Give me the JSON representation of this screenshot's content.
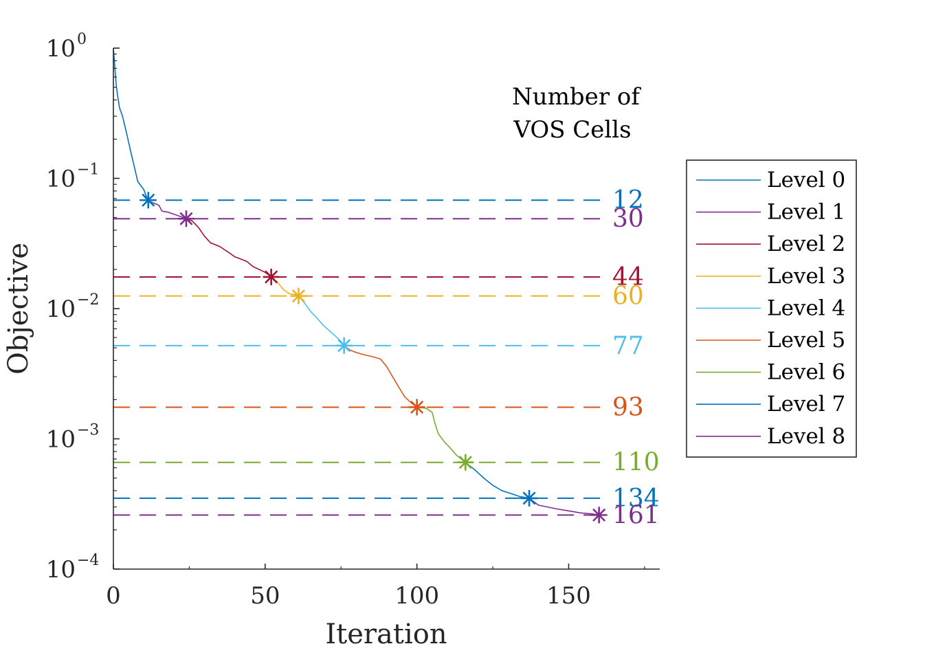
{
  "chart_data": {
    "type": "line",
    "title": "",
    "xlabel": "Iteration",
    "ylabel": "Objective",
    "xlim": [
      0,
      180
    ],
    "ylim": [
      0.0001,
      1
    ],
    "yscale": "log",
    "grid": false,
    "legend_position": "outside-right",
    "x_ticks": [
      0,
      50,
      100,
      150
    ],
    "x_tick_labels": [
      "0",
      "50",
      "100",
      "150"
    ],
    "y_ticks": [
      0.0001,
      0.001,
      0.01,
      0.1,
      1
    ],
    "y_tick_labels": [
      {
        "base": "10",
        "exp": "−4"
      },
      {
        "base": "10",
        "exp": "−3"
      },
      {
        "base": "10",
        "exp": "−2"
      },
      {
        "base": "10",
        "exp": "−1"
      },
      {
        "base": "10",
        "exp": "0"
      }
    ],
    "annotation_title": [
      "Number of",
      "VOS Cells"
    ],
    "series": [
      {
        "name": "Level 0",
        "color": "#0072BD",
        "cells": "12",
        "threshold": 0.068,
        "points": [
          [
            0,
            1.0
          ],
          [
            0.5,
            0.7
          ],
          [
            1,
            0.5
          ],
          [
            2,
            0.35
          ],
          [
            3,
            0.3
          ],
          [
            4,
            0.24
          ],
          [
            5,
            0.19
          ],
          [
            6,
            0.15
          ],
          [
            7,
            0.12
          ],
          [
            8,
            0.095
          ],
          [
            9,
            0.088
          ],
          [
            10,
            0.082
          ],
          [
            11,
            0.071
          ],
          [
            11.5,
            0.068
          ]
        ]
      },
      {
        "name": "Level 1",
        "color": "#7E2F8E",
        "cells": "30",
        "threshold": 0.049,
        "points": [
          [
            11,
            0.068
          ],
          [
            13,
            0.065
          ],
          [
            15,
            0.062
          ],
          [
            16,
            0.056
          ],
          [
            18,
            0.055
          ],
          [
            20,
            0.053
          ],
          [
            22,
            0.051
          ],
          [
            24,
            0.049
          ]
        ]
      },
      {
        "name": "Level 2",
        "color": "#A2142F",
        "cells": "44",
        "threshold": 0.0175,
        "points": [
          [
            24,
            0.049
          ],
          [
            26,
            0.047
          ],
          [
            28,
            0.042
          ],
          [
            30,
            0.036
          ],
          [
            32,
            0.032
          ],
          [
            35,
            0.03
          ],
          [
            38,
            0.027
          ],
          [
            40,
            0.025
          ],
          [
            42,
            0.024
          ],
          [
            44,
            0.023
          ],
          [
            46,
            0.021
          ],
          [
            48,
            0.02
          ],
          [
            50,
            0.019
          ],
          [
            52,
            0.0175
          ]
        ]
      },
      {
        "name": "Level 3",
        "color": "#EDB120",
        "cells": "60",
        "threshold": 0.0125,
        "points": [
          [
            52,
            0.0175
          ],
          [
            54,
            0.016
          ],
          [
            56,
            0.014
          ],
          [
            58,
            0.013
          ],
          [
            60,
            0.0128
          ],
          [
            61,
            0.0125
          ]
        ]
      },
      {
        "name": "Level 4",
        "color": "#4DBEEE",
        "cells": "77",
        "threshold": 0.0052,
        "points": [
          [
            61,
            0.0125
          ],
          [
            63,
            0.011
          ],
          [
            65,
            0.0095
          ],
          [
            67,
            0.0085
          ],
          [
            69,
            0.0075
          ],
          [
            71,
            0.0068
          ],
          [
            73,
            0.0062
          ],
          [
            75,
            0.0056
          ],
          [
            76,
            0.0052
          ]
        ]
      },
      {
        "name": "Level 5",
        "color": "#D95319",
        "cells": "93",
        "threshold": 0.00175,
        "points": [
          [
            76,
            0.0052
          ],
          [
            78,
            0.0048
          ],
          [
            80,
            0.0046
          ],
          [
            83,
            0.0044
          ],
          [
            85,
            0.0043
          ],
          [
            88,
            0.0041
          ],
          [
            90,
            0.0036
          ],
          [
            92,
            0.003
          ],
          [
            94,
            0.0025
          ],
          [
            96,
            0.0021
          ],
          [
            98,
            0.0019
          ],
          [
            100,
            0.00175
          ]
        ]
      },
      {
        "name": "Level 6",
        "color": "#77AC30",
        "cells": "110",
        "threshold": 0.00066,
        "points": [
          [
            100,
            0.00175
          ],
          [
            103,
            0.00172
          ],
          [
            105,
            0.0016
          ],
          [
            106,
            0.0013
          ],
          [
            107,
            0.0011
          ],
          [
            109,
            0.00095
          ],
          [
            111,
            0.00085
          ],
          [
            113,
            0.00075
          ],
          [
            116,
            0.00066
          ]
        ]
      },
      {
        "name": "Level 7",
        "color": "#0072BD",
        "cells": "134",
        "threshold": 0.00035,
        "points": [
          [
            116,
            0.00066
          ],
          [
            119,
            0.00058
          ],
          [
            122,
            0.0005
          ],
          [
            125,
            0.00044
          ],
          [
            128,
            0.0004
          ],
          [
            131,
            0.00038
          ],
          [
            134,
            0.00036
          ],
          [
            137,
            0.00035
          ]
        ]
      },
      {
        "name": "Level 8",
        "color": "#7E2F8E",
        "cells": "161",
        "threshold": 0.00026,
        "points": [
          [
            137,
            0.00035
          ],
          [
            140,
            0.00031
          ],
          [
            143,
            0.0003
          ],
          [
            146,
            0.00029
          ],
          [
            150,
            0.00028
          ],
          [
            154,
            0.00027
          ],
          [
            158,
            0.000265
          ],
          [
            160,
            0.00026
          ]
        ]
      }
    ]
  }
}
